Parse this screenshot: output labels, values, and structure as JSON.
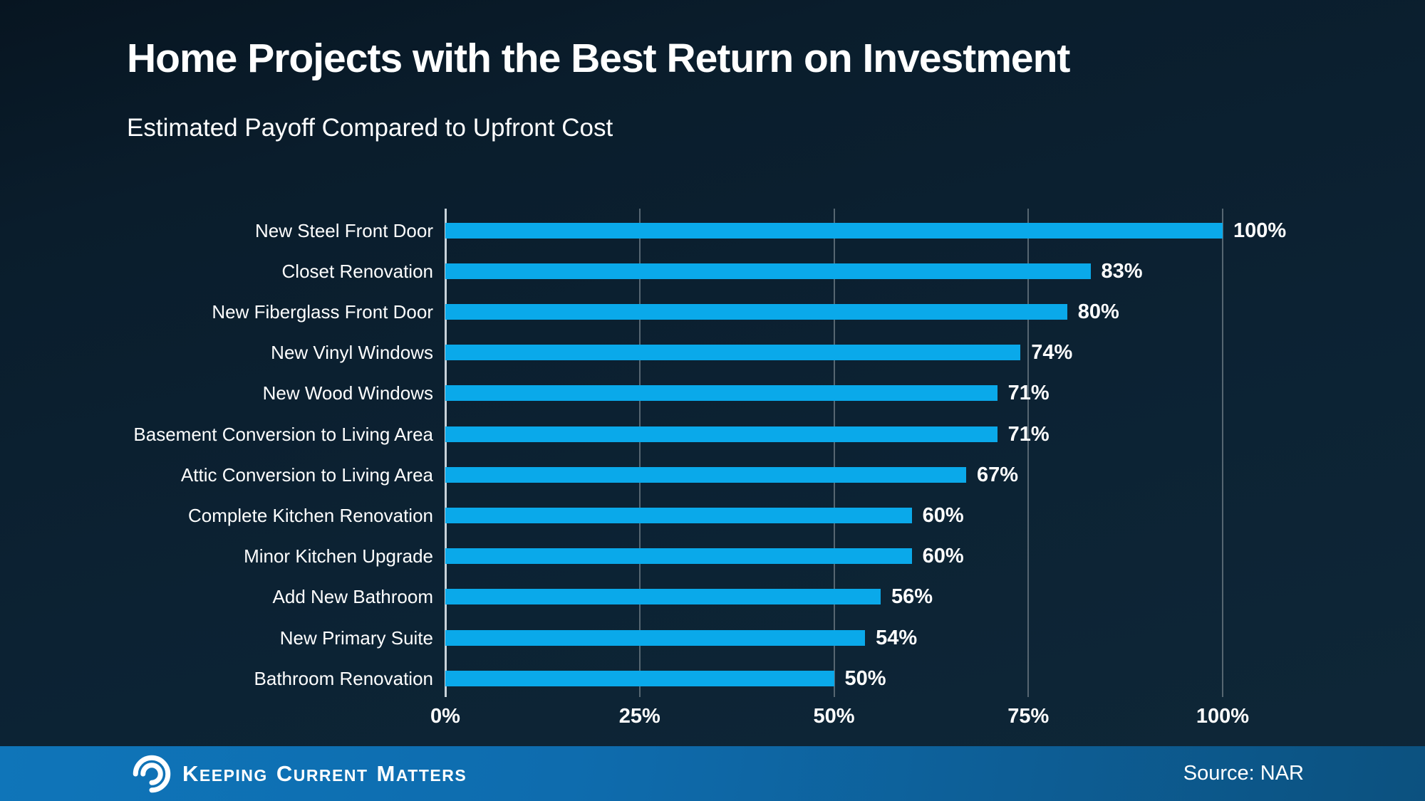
{
  "page": {
    "title": "Home Projects with the Best Return on Investment",
    "subtitle": "Estimated Payoff Compared to Upfront Cost"
  },
  "chart_data": {
    "type": "bar",
    "orientation": "horizontal",
    "title": "Home Projects with the Best Return on Investment",
    "subtitle": "Estimated Payoff Compared to Upfront Cost",
    "categories": [
      "New Steel Front Door",
      "Closet Renovation",
      "New Fiberglass Front Door",
      "New Vinyl Windows",
      "New Wood Windows",
      "Basement Conversion to Living Area",
      "Attic Conversion to Living Area",
      "Complete Kitchen Renovation",
      "Minor Kitchen Upgrade",
      "Add New Bathroom",
      "New Primary Suite",
      "Bathroom Renovation"
    ],
    "values": [
      100,
      83,
      80,
      74,
      71,
      71,
      67,
      60,
      60,
      56,
      54,
      50
    ],
    "value_labels": [
      "100%",
      "83%",
      "80%",
      "74%",
      "71%",
      "71%",
      "67%",
      "60%",
      "60%",
      "56%",
      "54%",
      "50%"
    ],
    "x_ticks": [
      {
        "value": 0,
        "label": "0%"
      },
      {
        "value": 25,
        "label": "25%"
      },
      {
        "value": 50,
        "label": "50%"
      },
      {
        "value": 75,
        "label": "75%"
      },
      {
        "value": 100,
        "label": "100%"
      }
    ],
    "xlim": [
      0,
      100
    ],
    "xlabel": "",
    "ylabel": "",
    "grid": "vertical-gridlines",
    "legend": "none",
    "bar_color": "#0aa9ea",
    "axis_line_color": "#c9d3da",
    "gridline_color": "#566671",
    "label_color": "#ffffff",
    "background_color": "#0c2233"
  },
  "footer": {
    "brand": {
      "icon": "kcm-swirl-icon",
      "words": [
        {
          "initial": "K",
          "rest": "EEPING"
        },
        {
          "initial": "C",
          "rest": "URRENT"
        },
        {
          "initial": "M",
          "rest": "ATTERS"
        }
      ]
    },
    "source_label": "Source: NAR",
    "bar_color_left": "#0f75b9",
    "bar_color_right": "#0c517f"
  }
}
